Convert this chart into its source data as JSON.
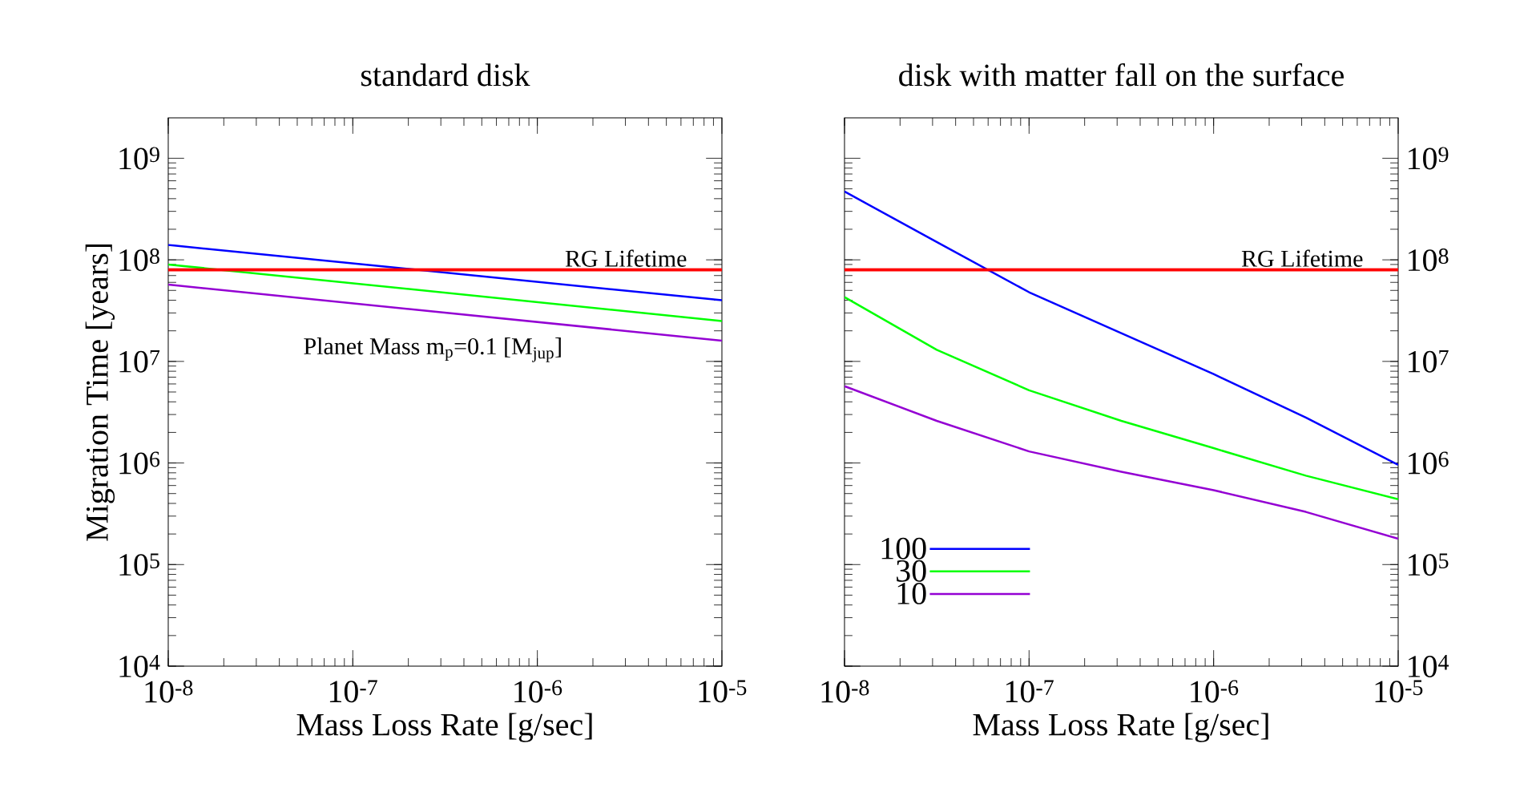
{
  "chart_data": [
    {
      "type": "line",
      "title": "standard disk",
      "xlabel": "Mass Loss Rate [g/sec]",
      "ylabel": "Migration Time [years]",
      "log": "xy",
      "marker": "none",
      "line_style": "solid",
      "annotations": [
        "Planet Mass m$_{p}$=0.1 [M$_{jup}$]"
      ],
      "x": [
        1e-08,
        1e-05
      ],
      "series": [
        {
          "color": "#0000ff",
          "values": [
            140000000.0,
            40000000.0
          ]
        },
        {
          "color": "#00ff00",
          "values": [
            90000000.0,
            25000000.0
          ]
        },
        {
          "color": "#9400d3",
          "values": [
            57000000.0,
            16000000.0
          ]
        }
      ],
      "ref_lines": [
        {
          "axis": "y",
          "value": 80000000.0,
          "label": "RG Lifetime",
          "color": "#ff0000"
        }
      ],
      "xlim": [
        1e-08,
        1e-05
      ],
      "ylim": [
        10000.0,
        2500000000.0
      ],
      "xticks": [
        {
          "value": 1e-08,
          "label": "10$^{-8}$"
        },
        {
          "value": 1e-07,
          "label": "10$^{-7}$"
        },
        {
          "value": 1e-06,
          "label": "10$^{-6}$"
        },
        {
          "value": 1e-05,
          "label": "10$^{-5}$"
        }
      ],
      "yticks": [
        {
          "value": 10000.0,
          "label": "10$^{4}$"
        },
        {
          "value": 100000.0,
          "label": "10$^{5}$"
        },
        {
          "value": 1000000.0,
          "label": "10$^{6}$"
        },
        {
          "value": 10000000.0,
          "label": "10$^{7}$"
        },
        {
          "value": 100000000.0,
          "label": "10$^{8}$"
        },
        {
          "value": 1000000000.0,
          "label": "10$^{9}$"
        }
      ]
    },
    {
      "type": "line",
      "title": "disk with matter fall on the surface",
      "xlabel": "Mass Loss Rate [g/sec]",
      "log": "xy",
      "marker": "none",
      "line_style": "solid",
      "legend": "bottom left",
      "x": [
        1e-08,
        3.16e-08,
        1e-07,
        3.16e-07,
        1e-06,
        3.16e-06,
        1e-05
      ],
      "series": [
        {
          "name": "100",
          "color": "#0000ff",
          "values": [
            470000000.0,
            150000000.0,
            48000000.0,
            19000000.0,
            7500000.0,
            2800000.0,
            960000.0
          ]
        },
        {
          "name": "30",
          "color": "#00ff00",
          "values": [
            43000000.0,
            13000000.0,
            5200000.0,
            2600000.0,
            1400000.0,
            750000.0,
            440000.0
          ]
        },
        {
          "name": "10",
          "color": "#9400d3",
          "values": [
            5700000.0,
            2600000.0,
            1300000.0,
            820000.0,
            540000.0,
            330000.0,
            180000.0
          ]
        }
      ],
      "ref_lines": [
        {
          "axis": "y",
          "value": 80000000.0,
          "label": "RG Lifetime",
          "color": "#ff0000"
        }
      ],
      "xlim": [
        1e-08,
        1e-05
      ],
      "ylim": [
        10000.0,
        2500000000.0
      ],
      "xticks": [
        {
          "value": 1e-08,
          "label": "10$^{-8}$"
        },
        {
          "value": 1e-07,
          "label": "10$^{-7}$"
        },
        {
          "value": 1e-06,
          "label": "10$^{-6}$"
        },
        {
          "value": 1e-05,
          "label": "10$^{-5}$"
        }
      ],
      "yticks": [
        {
          "value": 10000.0,
          "label": "10$^{4}$"
        },
        {
          "value": 100000.0,
          "label": "10$^{5}$"
        },
        {
          "value": 1000000.0,
          "label": "10$^{6}$"
        },
        {
          "value": 10000000.0,
          "label": "10$^{7}$"
        },
        {
          "value": 100000000.0,
          "label": "10$^{8}$"
        },
        {
          "value": 1000000000.0,
          "label": "10$^{9}$"
        }
      ]
    }
  ]
}
